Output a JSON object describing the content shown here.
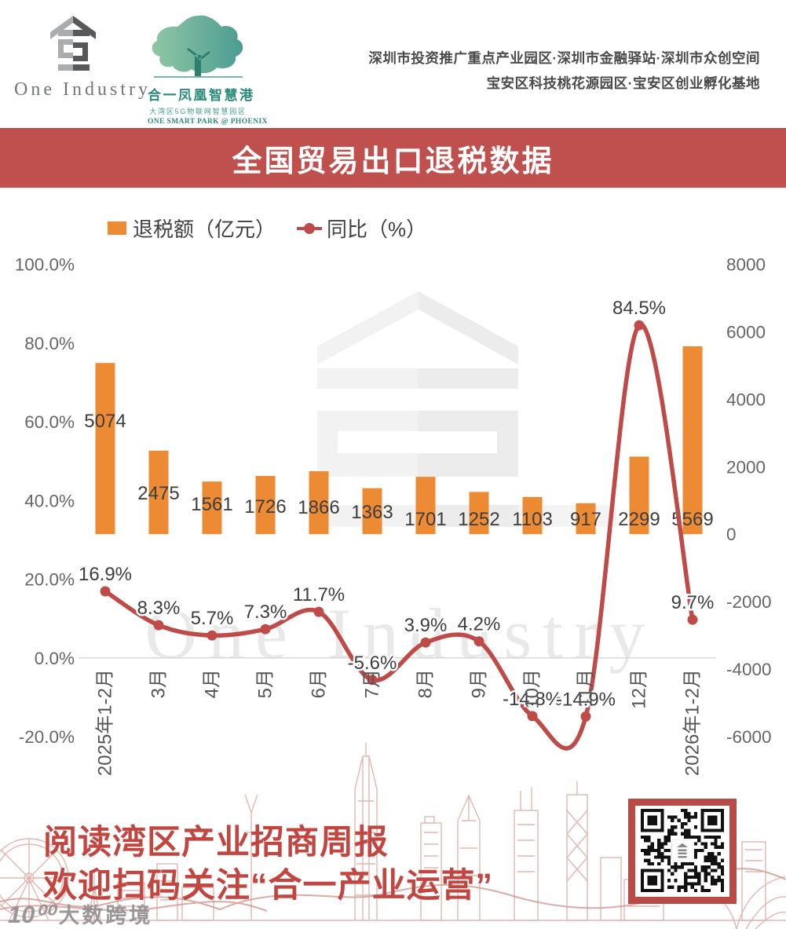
{
  "header": {
    "one_industry": {
      "name": "One Industry"
    },
    "phoenix": {
      "title": "合一凤凰智慧港",
      "subtitle_cn": "大湾区5G物联网智慧园区",
      "subtitle_en": "ONE SMART PARK @ PHOENIX"
    },
    "tagline_line1": "深圳市投资推广重点产业园区·深圳市金融驿站·深圳市众创空间",
    "tagline_line2": "宝安区科技桃花源园区·宝安区创业孵化基地"
  },
  "banner": {
    "title": "全国贸易出口退税数据",
    "bg_color": "#C0504D",
    "text_color": "#FFFFFF"
  },
  "legend": {
    "bar_label": "退税额（亿元）",
    "line_label": "同比（%）"
  },
  "chart_data": {
    "type": "combo-bar-line",
    "title": "全国贸易出口退税数据",
    "categories": [
      "2025年1-2月",
      "3月",
      "4月",
      "5月",
      "6月",
      "7月",
      "8月",
      "9月",
      "10月",
      "11月",
      "12月",
      "2026年1-2月"
    ],
    "series": [
      {
        "name": "退税额（亿元）",
        "type": "bar",
        "axis": "right",
        "color": "#ED8B35",
        "values": [
          5074,
          2475,
          1561,
          1726,
          1866,
          1363,
          1701,
          1252,
          1103,
          917,
          2299,
          5569
        ]
      },
      {
        "name": "同比（%）",
        "type": "line",
        "axis": "left",
        "color": "#BE4B48",
        "values": [
          16.9,
          8.3,
          5.7,
          7.3,
          11.7,
          -5.6,
          3.9,
          4.2,
          -14.8,
          -14.9,
          84.5,
          9.7
        ]
      }
    ],
    "left_axis": {
      "min": -20,
      "max": 100,
      "step": 20,
      "labels": [
        "100.0%",
        "80.0%",
        "60.0%",
        "40.0%",
        "20.0%",
        "0.0%",
        "-20.0%"
      ]
    },
    "right_axis": {
      "min": -6000,
      "max": 8000,
      "step": 2000,
      "labels": [
        "8000",
        "6000",
        "4000",
        "2000",
        "0",
        "-2000",
        "-4000",
        "-6000"
      ]
    },
    "grid": "zero-line-only",
    "legend_position": "top-left",
    "bar_label_y": [
      536,
      628,
      642,
      645,
      646,
      652,
      661,
      661,
      661,
      661,
      661,
      661
    ]
  },
  "watermarks": {
    "chart_text": "One Industry",
    "footer_brand_mark": "10⁰⁰",
    "footer_brand": "大数跨境"
  },
  "footer": {
    "line1": "阅读湾区产业招商周报",
    "line2": "欢迎扫码关注“合一产业运营”",
    "text_color": "#C2453F"
  }
}
